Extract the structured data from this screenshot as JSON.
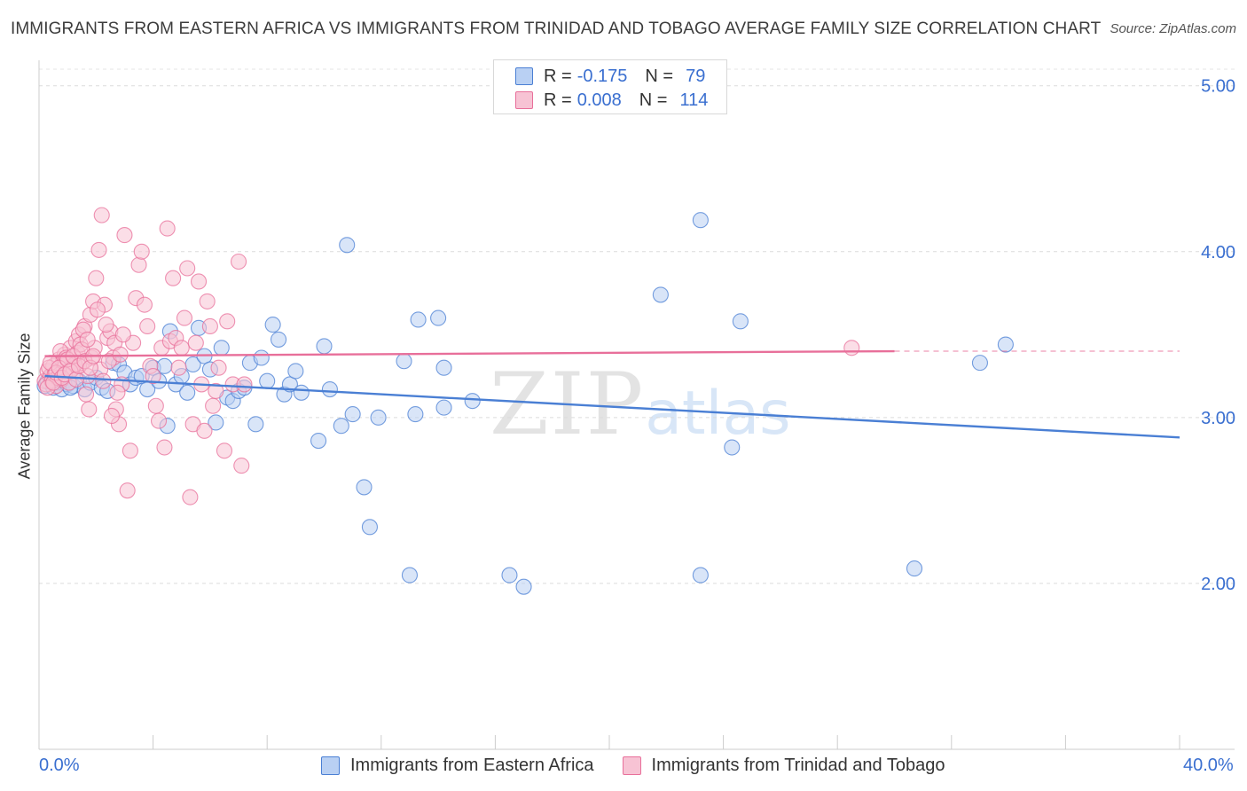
{
  "title": "IMMIGRANTS FROM EASTERN AFRICA VS IMMIGRANTS FROM TRINIDAD AND TOBAGO AVERAGE FAMILY SIZE CORRELATION CHART",
  "source": "Source: ZipAtlas.com",
  "watermark": {
    "zip": "ZIP",
    "atlas": "atlas"
  },
  "legend": {
    "rows": [
      {
        "r_label": "R = ",
        "r_value": "-0.175",
        "n_label": "N = ",
        "n_value": "79"
      },
      {
        "r_label": "R = ",
        "r_value": "0.008",
        "n_label": "N = ",
        "n_value": "114"
      }
    ]
  },
  "chart_data": {
    "type": "scatter",
    "title": "IMMIGRANTS FROM EASTERN AFRICA VS IMMIGRANTS FROM TRINIDAD AND TOBAGO AVERAGE FAMILY SIZE CORRELATION CHART",
    "xlabel": "",
    "ylabel": "Average Family Size",
    "xlim": [
      0,
      40
    ],
    "ylim": [
      1.0,
      5.1
    ],
    "x_tick_labels": [
      "0.0%",
      "40.0%"
    ],
    "y_ticks": [
      2.0,
      3.0,
      4.0,
      5.0
    ],
    "y_tick_labels": [
      "2.00",
      "3.00",
      "4.00",
      "5.00"
    ],
    "grid": true,
    "legend_position": "top-center",
    "colors": {
      "blue": "#4a7fd4",
      "blue_fill": "#b9d0f3",
      "pink": "#e86f9a",
      "pink_fill": "#f7c3d4"
    },
    "series": [
      {
        "name": "Immigrants from Eastern Africa",
        "color": "#4a7fd4",
        "trend": {
          "x": [
            0.2,
            40.0
          ],
          "y": [
            3.25,
            2.88
          ]
        },
        "points": [
          [
            0.2,
            3.19
          ],
          [
            0.3,
            3.22
          ],
          [
            0.4,
            3.24
          ],
          [
            0.5,
            3.18
          ],
          [
            0.6,
            3.21
          ],
          [
            0.7,
            3.23
          ],
          [
            0.8,
            3.17
          ],
          [
            0.9,
            3.22
          ],
          [
            1.0,
            3.2
          ],
          [
            1.2,
            3.19
          ],
          [
            1.4,
            3.22
          ],
          [
            1.6,
            3.17
          ],
          [
            1.8,
            3.21
          ],
          [
            2.0,
            3.24
          ],
          [
            2.2,
            3.18
          ],
          [
            2.4,
            3.16
          ],
          [
            2.6,
            3.33
          ],
          [
            2.8,
            3.32
          ],
          [
            3.0,
            3.27
          ],
          [
            3.2,
            3.2
          ],
          [
            3.4,
            3.24
          ],
          [
            3.6,
            3.25
          ],
          [
            3.8,
            3.17
          ],
          [
            4.0,
            3.3
          ],
          [
            4.2,
            3.22
          ],
          [
            4.4,
            3.31
          ],
          [
            4.5,
            2.95
          ],
          [
            4.6,
            3.52
          ],
          [
            4.8,
            3.2
          ],
          [
            5.0,
            3.25
          ],
          [
            5.2,
            3.15
          ],
          [
            5.4,
            3.32
          ],
          [
            5.6,
            3.54
          ],
          [
            5.8,
            3.37
          ],
          [
            6.0,
            3.29
          ],
          [
            6.2,
            2.97
          ],
          [
            6.4,
            3.42
          ],
          [
            6.6,
            3.12
          ],
          [
            6.8,
            3.1
          ],
          [
            7.0,
            3.16
          ],
          [
            7.2,
            3.18
          ],
          [
            7.4,
            3.33
          ],
          [
            7.6,
            2.96
          ],
          [
            7.8,
            3.36
          ],
          [
            8.0,
            3.22
          ],
          [
            8.2,
            3.56
          ],
          [
            8.4,
            3.47
          ],
          [
            8.6,
            3.14
          ],
          [
            8.8,
            3.2
          ],
          [
            9.0,
            3.28
          ],
          [
            9.2,
            3.15
          ],
          [
            9.8,
            2.86
          ],
          [
            10.0,
            3.43
          ],
          [
            10.2,
            3.17
          ],
          [
            10.6,
            2.95
          ],
          [
            10.8,
            4.04
          ],
          [
            11.0,
            3.02
          ],
          [
            11.4,
            2.58
          ],
          [
            11.6,
            2.34
          ],
          [
            11.9,
            3.0
          ],
          [
            12.8,
            3.34
          ],
          [
            13.0,
            2.05
          ],
          [
            13.2,
            3.02
          ],
          [
            13.3,
            3.59
          ],
          [
            14.0,
            3.6
          ],
          [
            14.2,
            3.3
          ],
          [
            14.2,
            3.06
          ],
          [
            15.2,
            3.1
          ],
          [
            16.5,
            2.05
          ],
          [
            17.0,
            1.98
          ],
          [
            21.8,
            3.74
          ],
          [
            23.2,
            4.19
          ],
          [
            23.2,
            2.05
          ],
          [
            24.3,
            2.82
          ],
          [
            24.6,
            3.58
          ],
          [
            30.7,
            2.09
          ],
          [
            33.0,
            3.33
          ],
          [
            33.9,
            3.44
          ],
          [
            1.1,
            3.18
          ]
        ]
      },
      {
        "name": "Immigrants from Trinidad and Tobago",
        "color": "#e86f9a",
        "trend": {
          "x": [
            0.2,
            30.0
          ],
          "y": [
            3.37,
            3.4
          ]
        },
        "trend_dashed": {
          "x": [
            30.0,
            40.0
          ],
          "y": [
            3.4,
            3.4
          ]
        },
        "points": [
          [
            0.2,
            3.22
          ],
          [
            0.3,
            3.28
          ],
          [
            0.4,
            3.25
          ],
          [
            0.5,
            3.31
          ],
          [
            0.6,
            3.19
          ],
          [
            0.7,
            3.35
          ],
          [
            0.8,
            3.23
          ],
          [
            0.9,
            3.38
          ],
          [
            1.0,
            3.27
          ],
          [
            1.1,
            3.42
          ],
          [
            1.2,
            3.3
          ],
          [
            1.3,
            3.46
          ],
          [
            1.4,
            3.5
          ],
          [
            1.5,
            3.33
          ],
          [
            1.6,
            3.55
          ],
          [
            1.7,
            3.25
          ],
          [
            1.8,
            3.62
          ],
          [
            1.9,
            3.7
          ],
          [
            2.0,
            3.84
          ],
          [
            2.1,
            4.01
          ],
          [
            2.2,
            4.22
          ],
          [
            2.3,
            3.68
          ],
          [
            2.4,
            3.48
          ],
          [
            2.5,
            3.52
          ],
          [
            2.6,
            3.36
          ],
          [
            2.7,
            3.05
          ],
          [
            2.8,
            2.96
          ],
          [
            2.9,
            3.2
          ],
          [
            3.0,
            4.1
          ],
          [
            3.1,
            2.56
          ],
          [
            3.2,
            2.8
          ],
          [
            3.3,
            3.45
          ],
          [
            3.4,
            3.72
          ],
          [
            3.5,
            3.92
          ],
          [
            3.6,
            4.0
          ],
          [
            3.7,
            3.68
          ],
          [
            3.8,
            3.55
          ],
          [
            3.9,
            3.31
          ],
          [
            4.0,
            3.25
          ],
          [
            4.1,
            3.07
          ],
          [
            4.2,
            2.98
          ],
          [
            4.3,
            3.42
          ],
          [
            4.4,
            2.82
          ],
          [
            4.5,
            4.14
          ],
          [
            4.6,
            3.46
          ],
          [
            4.7,
            3.84
          ],
          [
            4.8,
            3.48
          ],
          [
            4.9,
            3.3
          ],
          [
            5.0,
            3.42
          ],
          [
            5.1,
            3.6
          ],
          [
            5.2,
            3.9
          ],
          [
            5.3,
            2.52
          ],
          [
            5.4,
            2.96
          ],
          [
            5.5,
            3.45
          ],
          [
            5.6,
            3.82
          ],
          [
            5.7,
            3.2
          ],
          [
            5.8,
            2.92
          ],
          [
            5.9,
            3.7
          ],
          [
            6.0,
            3.55
          ],
          [
            6.1,
            3.07
          ],
          [
            6.2,
            3.16
          ],
          [
            6.3,
            3.3
          ],
          [
            6.5,
            2.8
          ],
          [
            6.6,
            3.58
          ],
          [
            6.8,
            3.2
          ],
          [
            7.0,
            3.94
          ],
          [
            7.1,
            2.71
          ],
          [
            7.2,
            3.2
          ],
          [
            0.25,
            3.2
          ],
          [
            0.35,
            3.3
          ],
          [
            0.45,
            3.22
          ],
          [
            0.55,
            3.26
          ],
          [
            0.65,
            3.24
          ],
          [
            0.75,
            3.4
          ],
          [
            0.85,
            3.34
          ],
          [
            0.95,
            3.36
          ],
          [
            1.05,
            3.21
          ],
          [
            1.15,
            3.29
          ],
          [
            1.25,
            3.32
          ],
          [
            1.35,
            3.39
          ],
          [
            1.45,
            3.44
          ],
          [
            1.55,
            3.53
          ],
          [
            1.65,
            3.14
          ],
          [
            1.75,
            3.05
          ],
          [
            1.85,
            3.36
          ],
          [
            1.95,
            3.42
          ],
          [
            2.05,
            3.65
          ],
          [
            2.15,
            3.29
          ],
          [
            2.25,
            3.22
          ],
          [
            2.35,
            3.56
          ],
          [
            2.45,
            3.34
          ],
          [
            2.55,
            3.01
          ],
          [
            2.65,
            3.45
          ],
          [
            2.75,
            3.15
          ],
          [
            2.85,
            3.38
          ],
          [
            2.95,
            3.5
          ],
          [
            0.3,
            3.18
          ],
          [
            0.4,
            3.33
          ],
          [
            0.5,
            3.21
          ],
          [
            0.6,
            3.27
          ],
          [
            0.7,
            3.3
          ],
          [
            0.8,
            3.24
          ],
          [
            0.9,
            3.26
          ],
          [
            1.0,
            3.35
          ],
          [
            1.1,
            3.28
          ],
          [
            1.2,
            3.37
          ],
          [
            1.3,
            3.23
          ],
          [
            1.4,
            3.31
          ],
          [
            1.5,
            3.41
          ],
          [
            1.6,
            3.34
          ],
          [
            1.7,
            3.47
          ],
          [
            1.8,
            3.3
          ],
          [
            28.5,
            3.42
          ],
          [
            1.9,
            3.37
          ]
        ]
      }
    ]
  }
}
